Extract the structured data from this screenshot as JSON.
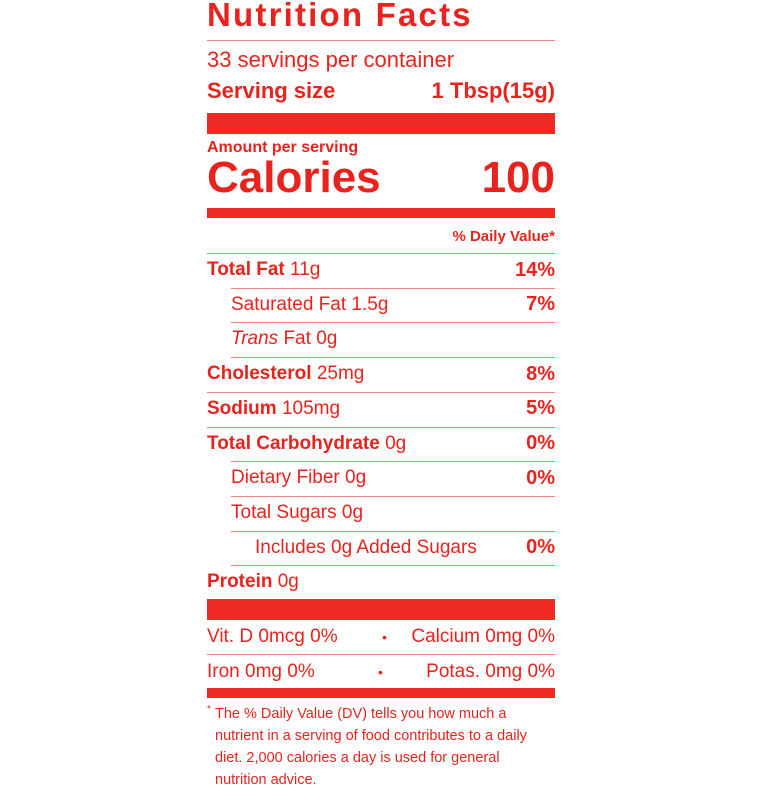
{
  "title": "Nutrition Facts",
  "servings_per_container": "33 servings per container",
  "serving_size": {
    "label": "Serving size",
    "value": "1 Tbsp(15g)"
  },
  "amount_per_serving": "Amount per serving",
  "calories": {
    "label": "Calories",
    "value": "100"
  },
  "daily_value_header": "% Daily Value*",
  "nutrients": [
    {
      "name": "Total Fat",
      "amount": "11g",
      "dv": "14%",
      "bold": true,
      "indent": 0
    },
    {
      "name": "Saturated Fat",
      "amount": "1.5g",
      "dv": "7%",
      "bold": false,
      "indent": 1
    },
    {
      "name": "Trans",
      "name_suffix": "Fat",
      "amount": "0g",
      "dv": "",
      "bold": false,
      "indent": 1
    },
    {
      "name": "Cholesterol",
      "amount": "25mg",
      "dv": "8%",
      "bold": true,
      "indent": 0
    },
    {
      "name": "Sodium",
      "amount": "105mg",
      "dv": "5%",
      "bold": true,
      "indent": 0
    },
    {
      "name": "Total Carbohydrate",
      "amount": "0g",
      "dv": "0%",
      "bold": true,
      "indent": 0
    },
    {
      "name": "Dietary Fiber",
      "amount": "0g",
      "dv": "0%",
      "bold": false,
      "indent": 1
    },
    {
      "name": "Total Sugars",
      "amount": "0g",
      "dv": "",
      "bold": false,
      "indent": 1
    },
    {
      "name": "Includes 0g Added Sugars",
      "amount": "",
      "dv": "0%",
      "bold": false,
      "indent": 2
    },
    {
      "name": "Protein",
      "amount": "0g",
      "dv": "",
      "bold": true,
      "indent": 0
    }
  ],
  "micronutrients": [
    {
      "left": "Vit. D 0mcg 0%",
      "sep": "•",
      "right": "Calcium 0mg 0%"
    },
    {
      "left": "Iron 0mg 0%",
      "sep": "•",
      "right": "Potas. 0mg 0%"
    }
  ],
  "footnote": {
    "mark": "*",
    "text": "The % Daily Value (DV) tells you how much a nutrient in a serving of food contributes to a daily diet. 2,000 calories a day is used for general nutrition advice."
  },
  "colors": {
    "ink": "#e8231e",
    "background": "#ffffff"
  }
}
